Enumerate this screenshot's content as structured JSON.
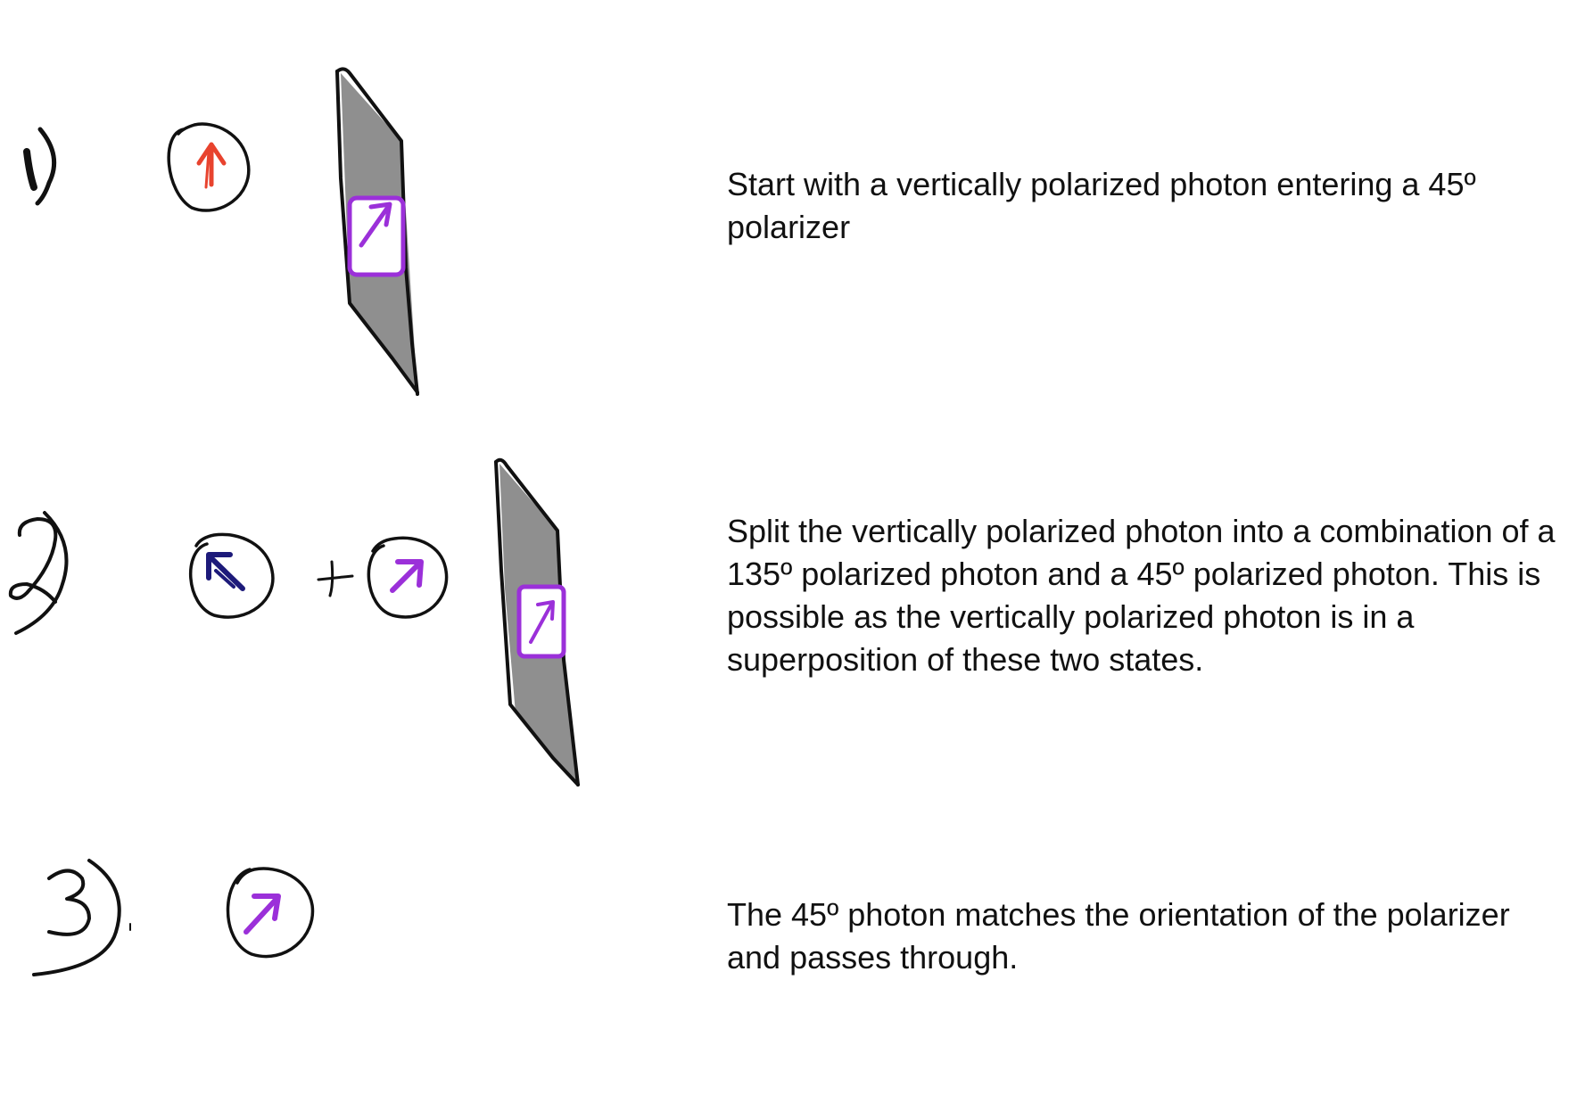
{
  "steps": [
    {
      "number": "1)",
      "caption": "Start with a vertically polarized photon entering a 45º polarizer"
    },
    {
      "number": "2)",
      "caption": "Split the vertically polarized photon into a combination of a 135º polarized photon and a 45º polarized photon. This is possible as the vertically polarized photon is in a superposition of these two states."
    },
    {
      "number": "3)",
      "caption": "The 45º photon matches the orientation of the polarizer and passes through."
    }
  ],
  "plus_sign": "+",
  "colors": {
    "ink": "#111111",
    "polarizer_fill": "#8f8f8f",
    "vertical_photon": "#e8432e",
    "photon_135": "#1d1a7a",
    "photon_45": "#9b30d9"
  },
  "icons": [
    "vertical-photon-icon",
    "photon-135-icon",
    "photon-45-icon",
    "polarizer-icon",
    "transmission-window-icon"
  ]
}
